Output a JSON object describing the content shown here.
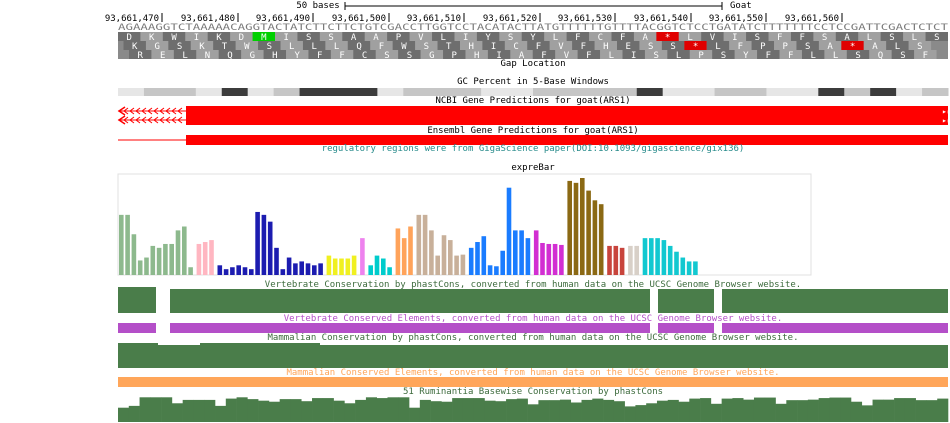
{
  "ruler": {
    "scale_label": "50 bases",
    "assembly_label": "Goat",
    "positions": [
      "93,661,470",
      "93,661,480",
      "93,661,490",
      "93,661,500",
      "93,661,510",
      "93,661,520",
      "93,661,530",
      "93,661,540",
      "93,661,550",
      "93,661,560"
    ]
  },
  "dna": {
    "sequence": "AGAAAGGTCTAAAAACAGGTACTATCTTCTTCTGTCGACCTTGGTCCTACATACTTATGTTTTTTGTTTTACGGTCTCCTGATATCTTTTTTTCCTCCGATTCGACTCTCT",
    "color": "#7a7a7a"
  },
  "translation_frames": [
    [
      "D",
      "K",
      "W",
      "I",
      "K",
      "D",
      "M",
      "I",
      "S",
      "S",
      "A",
      "A",
      "P",
      "V",
      "L",
      "I",
      "Y",
      "S",
      "Y",
      "L",
      "F",
      "C",
      "F",
      "A",
      "*",
      "L",
      "V",
      "I",
      "S",
      "F",
      "F",
      "S",
      "A",
      "L",
      "S",
      "L",
      "S"
    ],
    [
      "K",
      "G",
      "S",
      "K",
      "T",
      "W",
      "S",
      "L",
      "L",
      "L",
      "Q",
      "F",
      "W",
      "S",
      "T",
      "H",
      "I",
      "C",
      "F",
      "V",
      "F",
      "H",
      "E",
      "S",
      "S",
      "*",
      "L",
      "F",
      "P",
      "P",
      "S",
      "A",
      "*",
      "A",
      "L",
      "S"
    ],
    [
      "R",
      "E",
      "L",
      "N",
      "Q",
      "G",
      "H",
      "Y",
      "F",
      "F",
      "C",
      "S",
      "S",
      "G",
      "P",
      "H",
      "I",
      "A",
      "F",
      "V",
      "F",
      "L",
      "I",
      "S",
      "L",
      "P",
      "S",
      "Y",
      "F",
      "F",
      "L",
      "L",
      "S",
      "Q",
      "S",
      "F"
    ]
  ],
  "tracks": {
    "gap": "Gap Location",
    "gc": "GC Percent in 5-Base Windows",
    "ncbi": "NCBI Gene Predictions for goat(ARS1)",
    "ensembl": "Ensembl Gene Predictions for goat(ARS1)",
    "regulatory": "regulatory regions were from GigaScience paper(DOI:10.1093/gigascience/gix136)",
    "exprebar": "expreBar",
    "vert_cons": "Vertebrate Conservation by phastCons, converted from human data on the UCSC Genome Browser website.",
    "vert_elem": "Vertebrate Conserved Elements, converted from human data on the UCSC Genome Browser website.",
    "mamm_cons": "Mammalian Conservation by phastCons, converted from human data on the UCSC Genome Browser website.",
    "mamm_elem": "Mammalian Conserved Elements, converted from human data on the UCSC Genome Browser website.",
    "rumi_cons": "51 Ruminantia Basewise Conservation by phastCons"
  },
  "colors": {
    "gene_red": "#ff0000",
    "regulatory_teal": "#2a8c8c",
    "conservation_green": "#4a7d4a",
    "conserved_elements_purple": "#b44fc8",
    "mammalian_elements_orange": "#ffa65a",
    "start_codon": "#00d000",
    "stop_codon": "#e00000"
  },
  "exprebar_groups": [
    {
      "color": "#8db98d",
      "values": [
        0.62,
        0.62,
        0.42,
        0.15,
        0.18,
        0.3,
        0.28,
        0.32,
        0.32,
        0.46,
        0.5,
        0.08
      ]
    },
    {
      "color": "#ffb6c1",
      "values": [
        0.32,
        0.34,
        0.36
      ]
    },
    {
      "color": "#1c1cb0",
      "values": [
        0.1,
        0.06,
        0.08,
        0.1,
        0.08,
        0.06,
        0.65,
        0.62,
        0.55,
        0.28,
        0.06,
        0.18,
        0.12,
        0.14,
        0.12,
        0.1,
        0.12
      ]
    },
    {
      "color": "#f0f020",
      "values": [
        0.2,
        0.17,
        0.17,
        0.17,
        0.2
      ]
    },
    {
      "color": "#ee82ee",
      "values": [
        0.38
      ]
    },
    {
      "color": "#00cccc",
      "values": [
        0.1,
        0.2,
        0.17,
        0.08
      ]
    },
    {
      "color": "#ffa35a",
      "values": [
        0.48,
        0.38,
        0.5
      ]
    },
    {
      "color": "#c8b09a",
      "values": [
        0.62,
        0.62,
        0.46,
        0.2,
        0.41,
        0.36,
        0.2,
        0.21
      ]
    },
    {
      "color": "#1a7cff",
      "values": [
        0.28,
        0.34,
        0.4,
        0.1,
        0.09,
        0.25,
        0.9,
        0.46,
        0.46,
        0.38
      ]
    },
    {
      "color": "#d22ed2",
      "values": [
        0.46,
        0.33,
        0.32,
        0.32,
        0.31
      ]
    },
    {
      "color": "#8b6914",
      "values": [
        0.97,
        0.95,
        1.0,
        0.87,
        0.77,
        0.73
      ]
    },
    {
      "color": "#c8443c",
      "values": [
        0.3,
        0.3,
        0.28
      ]
    },
    {
      "color": "#d8d0c8",
      "values": [
        0.3,
        0.3
      ]
    },
    {
      "color": "#12c8d0",
      "values": [
        0.38,
        0.38,
        0.38,
        0.36,
        0.3,
        0.24,
        0.18,
        0.14,
        0.14
      ]
    }
  ],
  "ruminant_conservation": [
    0.55,
    0.62,
    0.95,
    0.95,
    0.95,
    0.72,
    0.85,
    0.85,
    0.85,
    0.62,
    0.9,
    0.95,
    0.88,
    0.82,
    0.78,
    0.88,
    0.88,
    0.8,
    0.92,
    0.92,
    0.82,
    0.72,
    0.85,
    0.95,
    0.92,
    0.95,
    0.95,
    0.55,
    0.85,
    0.8,
    0.78,
    0.92,
    0.92,
    0.92,
    0.82,
    0.8,
    0.88,
    0.9,
    0.68,
    0.84,
    0.84,
    0.86,
    0.75,
    0.85,
    0.9,
    0.85,
    0.8,
    0.6,
    0.65,
    0.72,
    0.82,
    0.85,
    0.78,
    0.9,
    0.92,
    0.7,
    0.9,
    0.92,
    0.86,
    0.94,
    0.94,
    0.7,
    0.84,
    0.84,
    0.86,
    0.92,
    0.94,
    0.94,
    0.78,
    0.64,
    0.86,
    0.86,
    0.92,
    0.92,
    0.84,
    0.84,
    0.9
  ]
}
